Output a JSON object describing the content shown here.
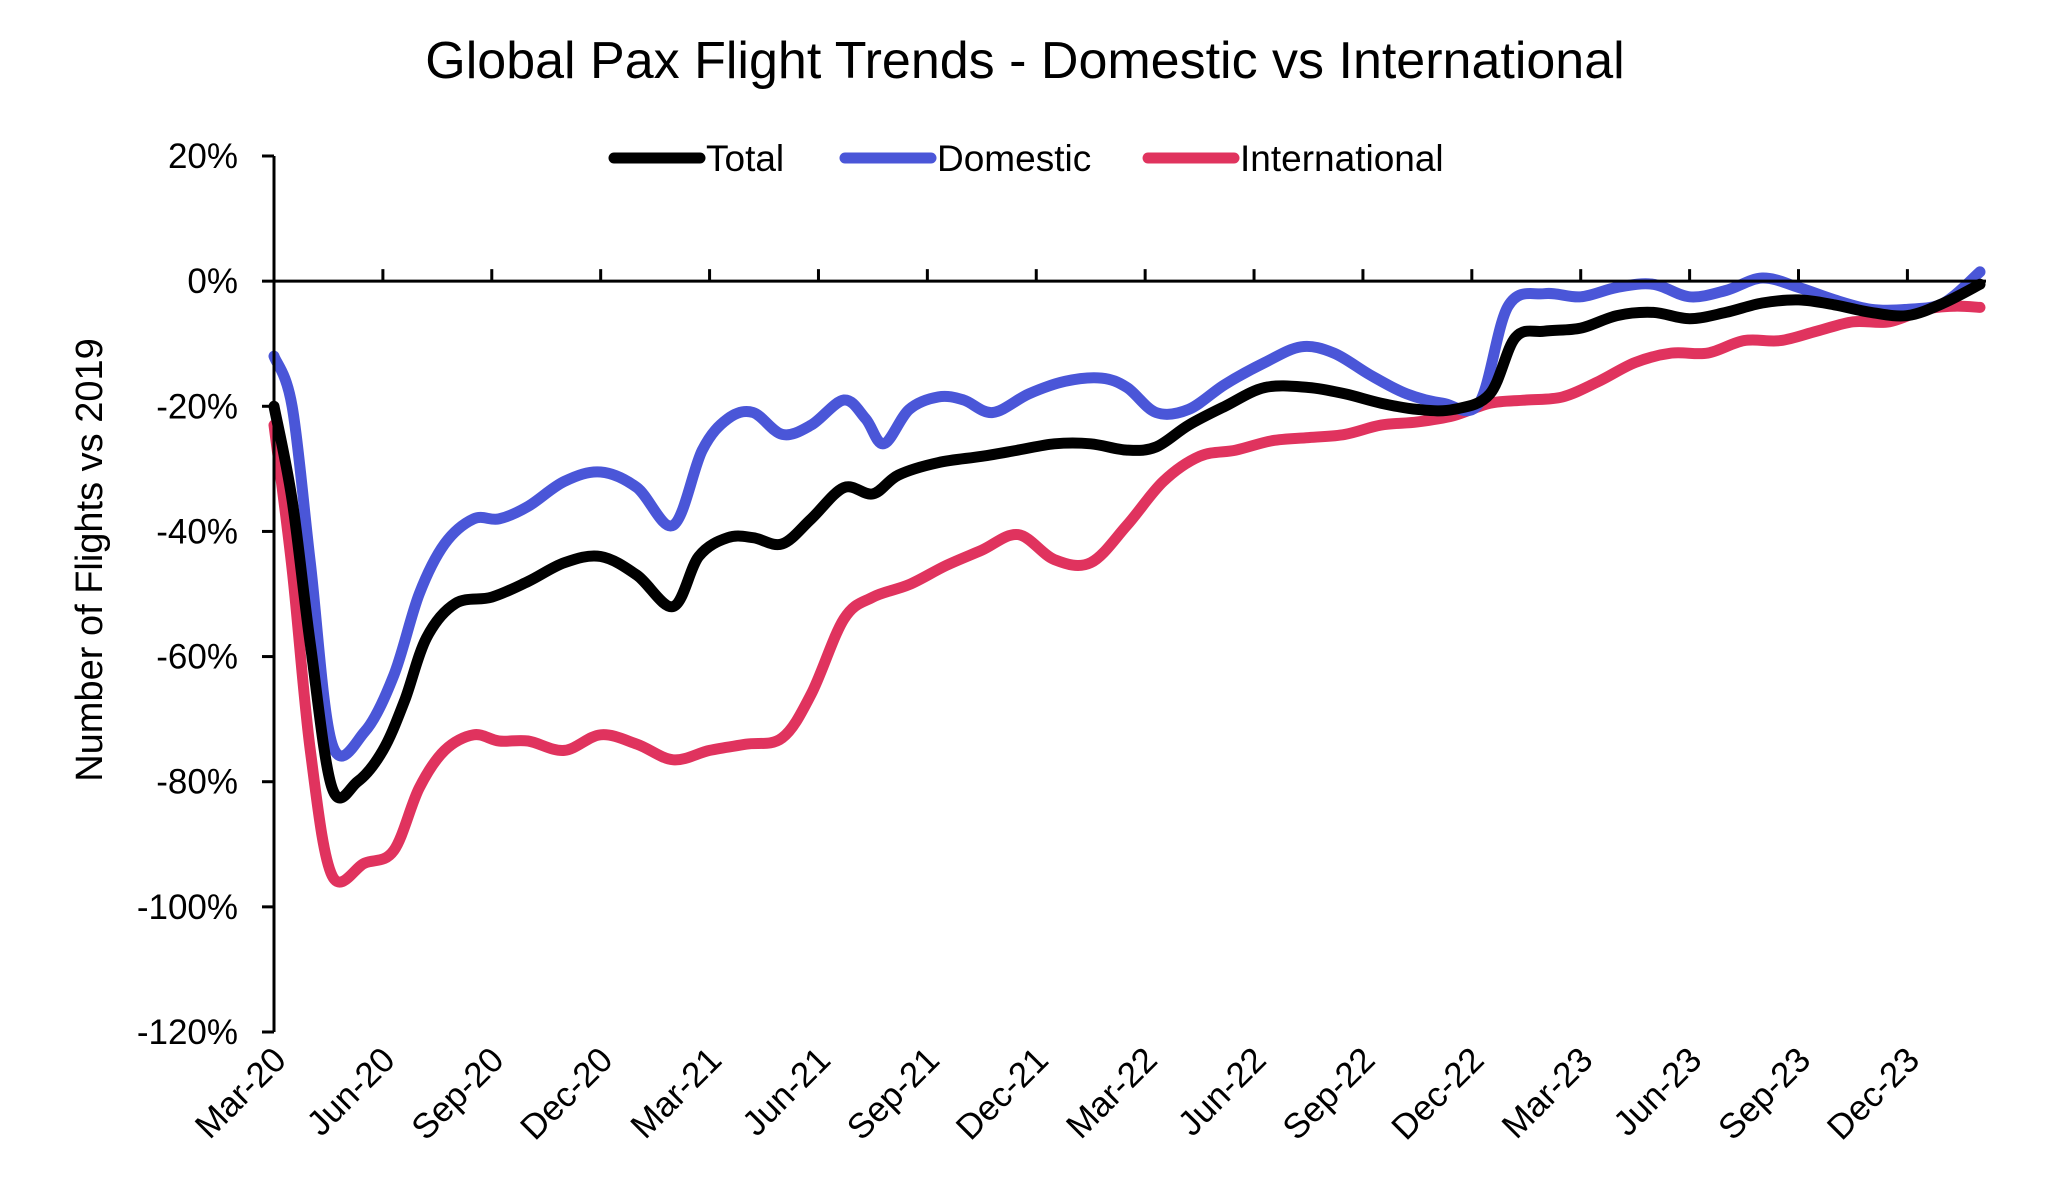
{
  "chart_data": {
    "type": "line",
    "title": "Global Pax Flight Trends - Domestic vs International",
    "xlabel": "",
    "ylabel": "Number of Flights vs 2019",
    "ylim": [
      -120,
      20
    ],
    "ytick_values": [
      20,
      0,
      -20,
      -40,
      -60,
      -80,
      -100,
      -120
    ],
    "ytick_labels": [
      "20%",
      "0%",
      "-20%",
      "-40%",
      "-60%",
      "-80%",
      "-100%",
      "-120%"
    ],
    "x_start": "Mar-20",
    "x_range_months": [
      0,
      47
    ],
    "xtick_months": [
      0,
      3,
      6,
      9,
      12,
      15,
      18,
      21,
      24,
      27,
      30,
      33,
      36,
      39,
      42,
      45
    ],
    "xtick_labels": [
      "Mar-20",
      "Jun-20",
      "Sep-20",
      "Dec-20",
      "Mar-21",
      "Jun-21",
      "Sep-21",
      "Dec-21",
      "Mar-22",
      "Jun-22",
      "Sep-22",
      "Dec-22",
      "Mar-23",
      "Jun-23",
      "Sep-23",
      "Dec-23"
    ],
    "legend": {
      "position": "top-center",
      "entries": [
        "Total",
        "Domestic",
        "International"
      ]
    },
    "series": [
      {
        "name": "Total",
        "color": "#000000",
        "points": [
          [
            0,
            -20
          ],
          [
            0.5,
            -35
          ],
          [
            1,
            -58
          ],
          [
            1.6,
            -81
          ],
          [
            2.3,
            -80
          ],
          [
            3,
            -75
          ],
          [
            3.6,
            -67
          ],
          [
            4.2,
            -57
          ],
          [
            5,
            -51.5
          ],
          [
            6,
            -50.5
          ],
          [
            7,
            -48
          ],
          [
            8,
            -45
          ],
          [
            9,
            -44
          ],
          [
            10,
            -47
          ],
          [
            11,
            -52
          ],
          [
            11.7,
            -44
          ],
          [
            12.5,
            -41
          ],
          [
            13.2,
            -41
          ],
          [
            14,
            -42
          ],
          [
            14.8,
            -38
          ],
          [
            15.7,
            -33
          ],
          [
            16.5,
            -34
          ],
          [
            17.2,
            -31
          ],
          [
            18.3,
            -29
          ],
          [
            19.5,
            -28
          ],
          [
            20.5,
            -27
          ],
          [
            21.5,
            -26
          ],
          [
            22.5,
            -26
          ],
          [
            23.5,
            -27
          ],
          [
            24.3,
            -26.5
          ],
          [
            25.2,
            -23
          ],
          [
            26.2,
            -20
          ],
          [
            27.3,
            -17
          ],
          [
            28.5,
            -17
          ],
          [
            29.5,
            -18
          ],
          [
            30.5,
            -19.5
          ],
          [
            31.5,
            -20.5
          ],
          [
            32.5,
            -20.5
          ],
          [
            33.5,
            -18
          ],
          [
            34.2,
            -9
          ],
          [
            35,
            -8
          ],
          [
            36,
            -7.5
          ],
          [
            37,
            -5.5
          ],
          [
            38,
            -5
          ],
          [
            39,
            -6
          ],
          [
            40,
            -5
          ],
          [
            41,
            -3.5
          ],
          [
            42,
            -3
          ],
          [
            43,
            -3.8
          ],
          [
            44,
            -5
          ],
          [
            45,
            -5.5
          ],
          [
            46,
            -3.5
          ],
          [
            47,
            -0.5
          ]
        ]
      },
      {
        "name": "Domestic",
        "color": "#4a56d8",
        "points": [
          [
            0,
            -12
          ],
          [
            0.5,
            -20
          ],
          [
            1,
            -45
          ],
          [
            1.6,
            -74
          ],
          [
            2.5,
            -72
          ],
          [
            3.3,
            -63
          ],
          [
            4,
            -50
          ],
          [
            4.7,
            -42
          ],
          [
            5.5,
            -38
          ],
          [
            6.2,
            -38
          ],
          [
            7,
            -36
          ],
          [
            8,
            -32
          ],
          [
            9,
            -30.5
          ],
          [
            10,
            -33
          ],
          [
            11,
            -39
          ],
          [
            11.8,
            -27
          ],
          [
            12.5,
            -22
          ],
          [
            13.2,
            -21
          ],
          [
            14,
            -24.5
          ],
          [
            14.8,
            -23
          ],
          [
            15.7,
            -19
          ],
          [
            16.3,
            -22
          ],
          [
            16.8,
            -26
          ],
          [
            17.5,
            -20.5
          ],
          [
            18.3,
            -18.5
          ],
          [
            19,
            -19
          ],
          [
            19.8,
            -21
          ],
          [
            20.8,
            -18
          ],
          [
            21.8,
            -16
          ],
          [
            22.8,
            -15.5
          ],
          [
            23.5,
            -17
          ],
          [
            24.3,
            -21
          ],
          [
            25.2,
            -20.5
          ],
          [
            26.2,
            -16.5
          ],
          [
            27.3,
            -13
          ],
          [
            28.3,
            -10.5
          ],
          [
            29.2,
            -11.5
          ],
          [
            30.2,
            -15
          ],
          [
            31.2,
            -18
          ],
          [
            32.2,
            -19.5
          ],
          [
            33.2,
            -19.5
          ],
          [
            34,
            -4
          ],
          [
            35,
            -2
          ],
          [
            36,
            -2.5
          ],
          [
            37,
            -1
          ],
          [
            38,
            -0.5
          ],
          [
            39,
            -2.5
          ],
          [
            40,
            -1.5
          ],
          [
            41,
            0.5
          ],
          [
            42,
            -1
          ],
          [
            43,
            -3
          ],
          [
            44,
            -4.5
          ],
          [
            45,
            -4.5
          ],
          [
            46,
            -3.5
          ],
          [
            47,
            1.5
          ]
        ]
      },
      {
        "name": "International",
        "color": "#e0335e",
        "points": [
          [
            0,
            -23
          ],
          [
            0.5,
            -46
          ],
          [
            1,
            -75
          ],
          [
            1.6,
            -95
          ],
          [
            2.5,
            -93
          ],
          [
            3.3,
            -91
          ],
          [
            4,
            -81
          ],
          [
            4.7,
            -75
          ],
          [
            5.5,
            -72.5
          ],
          [
            6.2,
            -73.5
          ],
          [
            7,
            -73.5
          ],
          [
            8,
            -75
          ],
          [
            9,
            -72.5
          ],
          [
            10,
            -74
          ],
          [
            11,
            -76.5
          ],
          [
            12,
            -75
          ],
          [
            13,
            -74
          ],
          [
            14,
            -73
          ],
          [
            14.8,
            -66
          ],
          [
            15.7,
            -54
          ],
          [
            16.5,
            -50.5
          ],
          [
            17.5,
            -48.5
          ],
          [
            18.5,
            -45.5
          ],
          [
            19.5,
            -43
          ],
          [
            20.5,
            -40.5
          ],
          [
            21.5,
            -44.5
          ],
          [
            22.5,
            -45
          ],
          [
            23.5,
            -39
          ],
          [
            24.5,
            -32
          ],
          [
            25.5,
            -28
          ],
          [
            26.5,
            -27
          ],
          [
            27.5,
            -25.5
          ],
          [
            28.5,
            -25
          ],
          [
            29.5,
            -24.5
          ],
          [
            30.5,
            -23
          ],
          [
            31.5,
            -22.5
          ],
          [
            32.5,
            -21.5
          ],
          [
            33.5,
            -19.5
          ],
          [
            34.5,
            -19
          ],
          [
            35.5,
            -18.5
          ],
          [
            36.5,
            -16
          ],
          [
            37.5,
            -13
          ],
          [
            38.5,
            -11.5
          ],
          [
            39.5,
            -11.5
          ],
          [
            40.5,
            -9.5
          ],
          [
            41.5,
            -9.5
          ],
          [
            42.5,
            -8
          ],
          [
            43.5,
            -6.5
          ],
          [
            44.5,
            -6.5
          ],
          [
            45.5,
            -4.5
          ],
          [
            46.3,
            -4
          ],
          [
            47,
            -4.2
          ]
        ]
      }
    ]
  }
}
